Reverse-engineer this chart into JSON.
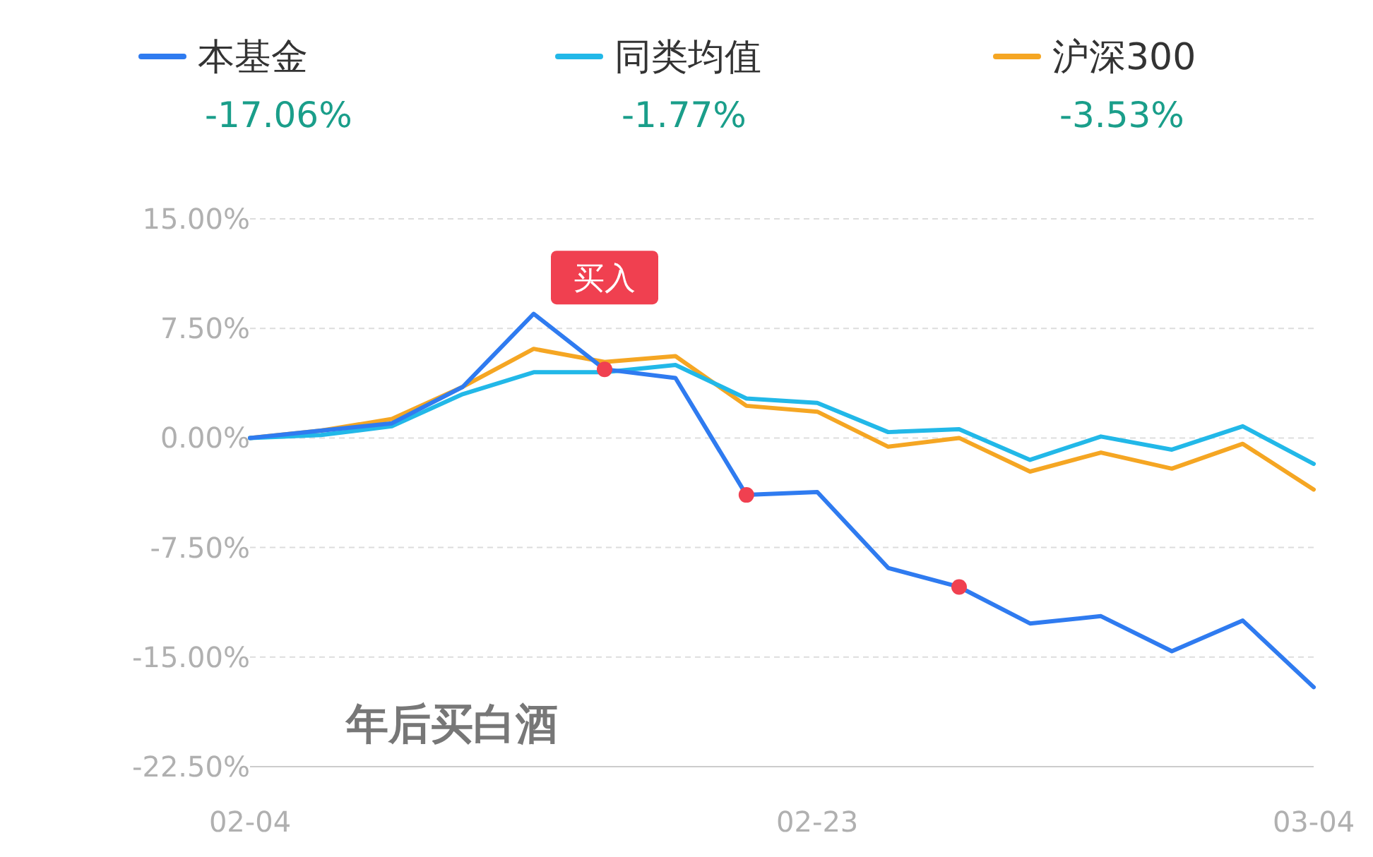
{
  "chart_data": {
    "type": "line",
    "categories": [
      "02-04",
      null,
      null,
      null,
      null,
      null,
      null,
      null,
      "02-23",
      null,
      null,
      null,
      null,
      null,
      null,
      "03-04"
    ],
    "series": [
      {
        "name": "本基金",
        "color": "#2f7bf0",
        "values": [
          0,
          0.5,
          1.0,
          3.5,
          8.5,
          4.7,
          4.1,
          -3.9,
          -3.7,
          -8.9,
          -10.2,
          -12.7,
          -12.2,
          -14.6,
          -12.5,
          -17.06
        ]
      },
      {
        "name": "同类均值",
        "color": "#22b8e8",
        "values": [
          0,
          0.2,
          0.8,
          3.0,
          4.5,
          4.5,
          5.0,
          2.7,
          2.4,
          0.4,
          0.6,
          -1.5,
          0.1,
          -0.8,
          0.8,
          -1.77
        ]
      },
      {
        "name": "沪深300",
        "color": "#f5a623",
        "values": [
          0,
          0.5,
          1.3,
          3.5,
          6.1,
          5.2,
          5.6,
          2.2,
          1.8,
          -0.6,
          0,
          -2.3,
          -1.0,
          -2.1,
          -0.4,
          -3.53
        ]
      },
      {
        "type": "scatter",
        "color": "#f04050",
        "values": [
          null,
          null,
          null,
          null,
          null,
          4.7,
          null,
          -3.9,
          null,
          null,
          -10.2,
          null,
          null,
          null,
          null,
          null
        ]
      }
    ],
    "ylim": [
      -22.5,
      15
    ],
    "yticks": [
      {
        "value": 15,
        "label": "15.00%"
      },
      {
        "value": 7.5,
        "label": "7.50%"
      },
      {
        "value": 0,
        "label": "0.00%"
      },
      {
        "value": -7.5,
        "label": "-7.50%"
      },
      {
        "value": -15,
        "label": "-15.00%"
      },
      {
        "value": -22.5,
        "label": "-22.50%"
      }
    ],
    "grid": "y",
    "legend": "top",
    "annotations": [
      "买入",
      "-17.06%",
      "-1.77%",
      "-3.53%",
      "年后买白酒"
    ]
  }
}
